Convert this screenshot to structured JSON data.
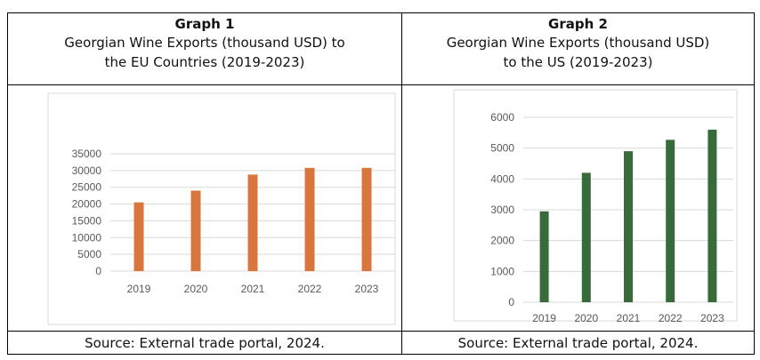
{
  "chart_data": [
    {
      "type": "bar",
      "graph_label": "Graph 1",
      "title": "Georgian Wine Exports (thousand USD) to the EU Countries (2019-2023)",
      "title_lines": [
        "Georgian Wine Exports (thousand USD) to",
        "the EU Countries (2019-2023)"
      ],
      "categories": [
        "2019",
        "2020",
        "2021",
        "2022",
        "2023"
      ],
      "values": [
        20500,
        24000,
        28800,
        30800,
        30800
      ],
      "ylim": [
        0,
        35000
      ],
      "yticks": [
        0,
        5000,
        10000,
        15000,
        20000,
        25000,
        30000,
        35000
      ],
      "grid": true,
      "bar_color": "#D9763E",
      "source": "Source: External trade portal, 2024."
    },
    {
      "type": "bar",
      "graph_label": "Graph 2",
      "title": "Georgian Wine Exports (thousand USD) to the US (2019-2023)",
      "title_lines": [
        "Georgian Wine Exports (thousand USD)",
        "to the US (2019-2023)"
      ],
      "categories": [
        "2019",
        "2020",
        "2021",
        "2022",
        "2023"
      ],
      "values": [
        2950,
        4200,
        4900,
        5270,
        5600
      ],
      "ylim": [
        0,
        6000
      ],
      "yticks": [
        0,
        1000,
        2000,
        3000,
        4000,
        5000,
        6000
      ],
      "grid": true,
      "bar_color": "#386B3A",
      "source": "Source: External trade portal, 2024."
    }
  ]
}
